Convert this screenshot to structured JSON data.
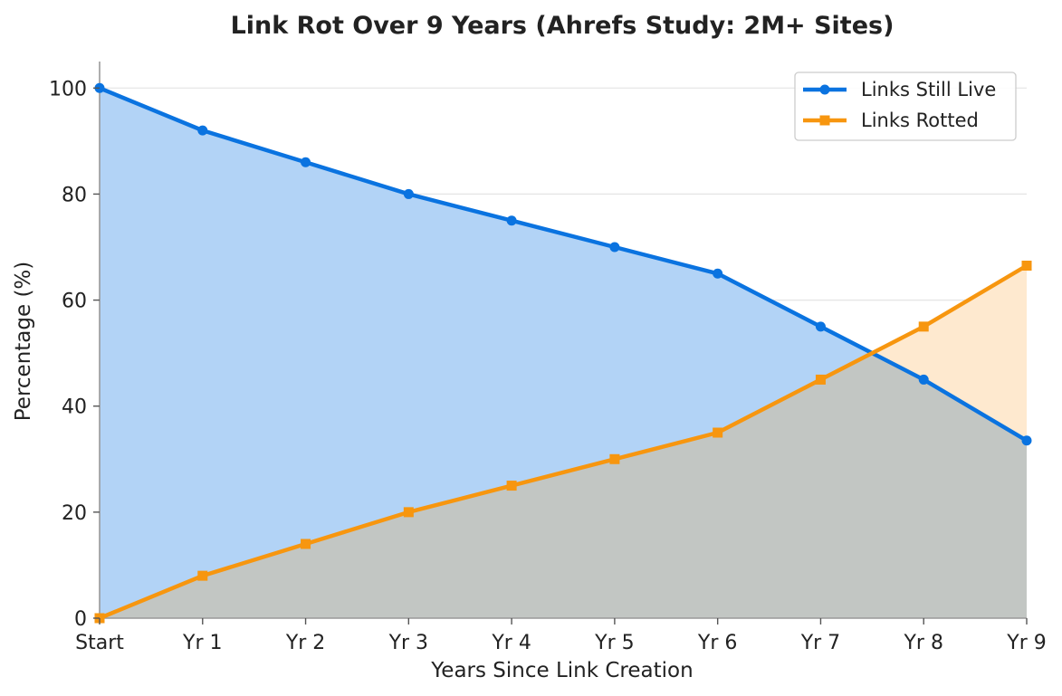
{
  "chart_data": {
    "type": "area",
    "title": "Link Rot Over 9 Years (Ahrefs Study: 2M+ Sites)",
    "xlabel": "Years Since Link Creation",
    "ylabel": "Percentage (%)",
    "categories": [
      "Start",
      "Yr 1",
      "Yr 2",
      "Yr 3",
      "Yr 4",
      "Yr 5",
      "Yr 6",
      "Yr 7",
      "Yr 8",
      "Yr 9"
    ],
    "ylim": [
      0,
      105
    ],
    "yticks": [
      0,
      20,
      40,
      60,
      80,
      100
    ],
    "grid": "horizontal",
    "legend_position": "top-right",
    "series": [
      {
        "name": "Links Still Live",
        "values": [
          100,
          92,
          86,
          80,
          75,
          70,
          65,
          55,
          45,
          33.5
        ],
        "color": "#0a73e0",
        "fill_color": "#b2d3f6",
        "marker": "circle"
      },
      {
        "name": "Links Rotted",
        "values": [
          0,
          8,
          14,
          20,
          25,
          30,
          35,
          45,
          55,
          66.5
        ],
        "color": "#f7960f",
        "fill_color": "#fee9cf",
        "marker": "square"
      }
    ],
    "overlap_fill_color": "#c2c6c3"
  }
}
